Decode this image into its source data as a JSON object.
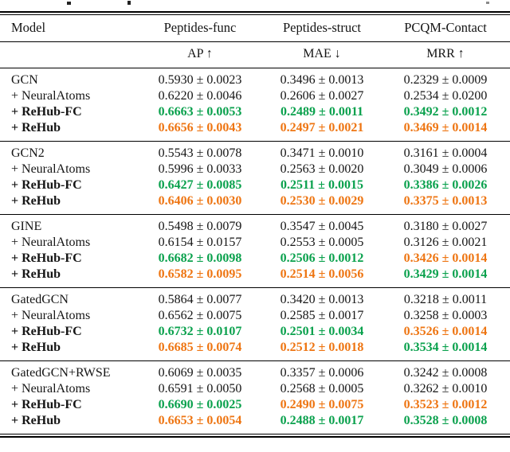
{
  "colors": {
    "green": "#0aa14d",
    "orange": "#ee7512",
    "ink": "#151515"
  },
  "table": {
    "columns": [
      "Model",
      "Peptides-func",
      "Peptides-struct",
      "PCQM-Contact"
    ],
    "metrics": [
      "AP ↑",
      "MAE ↓",
      "MRR ↑"
    ],
    "groups": [
      {
        "rows": [
          {
            "model": "GCN",
            "em": "n",
            "cells": [
              {
                "t": "0.5930 ± 0.0023",
                "tone": "plain"
              },
              {
                "t": "0.3496 ± 0.0013",
                "tone": "plain"
              },
              {
                "t": "0.2329 ± 0.0009",
                "tone": "plain"
              }
            ]
          },
          {
            "model": "+ NeuralAtoms",
            "em": "n",
            "cells": [
              {
                "t": "0.6220 ± 0.0046",
                "tone": "plain"
              },
              {
                "t": "0.2606 ± 0.0027",
                "tone": "plain"
              },
              {
                "t": "0.2534 ± 0.0200",
                "tone": "plain"
              }
            ]
          },
          {
            "model": "+ ReHub-FC",
            "em": "b",
            "cells": [
              {
                "t": "0.6663 ± 0.0053",
                "tone": "green"
              },
              {
                "t": "0.2489 ± 0.0011",
                "tone": "green"
              },
              {
                "t": "0.3492 ± 0.0012",
                "tone": "green"
              }
            ]
          },
          {
            "model": "+ ReHub",
            "em": "b",
            "cells": [
              {
                "t": "0.6656 ± 0.0043",
                "tone": "orange"
              },
              {
                "t": "0.2497 ± 0.0021",
                "tone": "orange"
              },
              {
                "t": "0.3469 ± 0.0014",
                "tone": "orange"
              }
            ]
          }
        ]
      },
      {
        "rows": [
          {
            "model": "GCN2",
            "em": "n",
            "cells": [
              {
                "t": "0.5543 ± 0.0078",
                "tone": "plain"
              },
              {
                "t": "0.3471 ± 0.0010",
                "tone": "plain"
              },
              {
                "t": "0.3161 ± 0.0004",
                "tone": "plain"
              }
            ]
          },
          {
            "model": "+ NeuralAtoms",
            "em": "n",
            "cells": [
              {
                "t": "0.5996 ± 0.0033",
                "tone": "plain"
              },
              {
                "t": "0.2563 ± 0.0020",
                "tone": "plain"
              },
              {
                "t": "0.3049 ± 0.0006",
                "tone": "plain"
              }
            ]
          },
          {
            "model": "+ ReHub-FC",
            "em": "b",
            "cells": [
              {
                "t": "0.6427 ± 0.0085",
                "tone": "green"
              },
              {
                "t": "0.2511 ± 0.0015",
                "tone": "green"
              },
              {
                "t": "0.3386 ± 0.0026",
                "tone": "green"
              }
            ]
          },
          {
            "model": "+ ReHub",
            "em": "b",
            "cells": [
              {
                "t": "0.6406 ± 0.0030",
                "tone": "orange"
              },
              {
                "t": "0.2530 ± 0.0029",
                "tone": "orange"
              },
              {
                "t": "0.3375 ± 0.0013",
                "tone": "orange"
              }
            ]
          }
        ]
      },
      {
        "rows": [
          {
            "model": "GINE",
            "em": "n",
            "cells": [
              {
                "t": "0.5498 ± 0.0079",
                "tone": "plain"
              },
              {
                "t": "0.3547 ± 0.0045",
                "tone": "plain"
              },
              {
                "t": "0.3180 ± 0.0027",
                "tone": "plain"
              }
            ]
          },
          {
            "model": "+ NeuralAtoms",
            "em": "n",
            "cells": [
              {
                "t": "0.6154 ± 0.0157",
                "tone": "plain"
              },
              {
                "t": "0.2553 ± 0.0005",
                "tone": "plain"
              },
              {
                "t": "0.3126 ± 0.0021",
                "tone": "plain"
              }
            ]
          },
          {
            "model": "+ ReHub-FC",
            "em": "b",
            "cells": [
              {
                "t": "0.6682 ± 0.0098",
                "tone": "green"
              },
              {
                "t": "0.2506 ± 0.0012",
                "tone": "green"
              },
              {
                "t": "0.3426 ± 0.0014",
                "tone": "orange"
              }
            ]
          },
          {
            "model": "+ ReHub",
            "em": "b",
            "cells": [
              {
                "t": "0.6582 ± 0.0095",
                "tone": "orange"
              },
              {
                "t": "0.2514 ± 0.0056",
                "tone": "orange"
              },
              {
                "t": "0.3429 ± 0.0014",
                "tone": "green"
              }
            ]
          }
        ]
      },
      {
        "rows": [
          {
            "model": "GatedGCN",
            "em": "n",
            "cells": [
              {
                "t": "0.5864 ± 0.0077",
                "tone": "plain"
              },
              {
                "t": "0.3420 ± 0.0013",
                "tone": "plain"
              },
              {
                "t": "0.3218 ± 0.0011",
                "tone": "plain"
              }
            ]
          },
          {
            "model": "+ NeuralAtoms",
            "em": "n",
            "cells": [
              {
                "t": "0.6562 ± 0.0075",
                "tone": "plain"
              },
              {
                "t": "0.2585 ± 0.0017",
                "tone": "plain"
              },
              {
                "t": "0.3258 ± 0.0003",
                "tone": "plain"
              }
            ]
          },
          {
            "model": "+ ReHub-FC",
            "em": "b",
            "cells": [
              {
                "t": "0.6732 ± 0.0107",
                "tone": "green"
              },
              {
                "t": "0.2501 ± 0.0034",
                "tone": "green"
              },
              {
                "t": "0.3526 ± 0.0014",
                "tone": "orange"
              }
            ]
          },
          {
            "model": "+ ReHub",
            "em": "b",
            "cells": [
              {
                "t": "0.6685 ± 0.0074",
                "tone": "orange"
              },
              {
                "t": "0.2512 ± 0.0018",
                "tone": "orange"
              },
              {
                "t": "0.3534 ± 0.0014",
                "tone": "green"
              }
            ]
          }
        ]
      },
      {
        "rows": [
          {
            "model": "GatedGCN+RWSE",
            "em": "n",
            "cells": [
              {
                "t": "0.6069 ± 0.0035",
                "tone": "plain"
              },
              {
                "t": "0.3357 ± 0.0006",
                "tone": "plain"
              },
              {
                "t": "0.3242 ± 0.0008",
                "tone": "plain"
              }
            ]
          },
          {
            "model": "+ NeuralAtoms",
            "em": "n",
            "cells": [
              {
                "t": "0.6591 ± 0.0050",
                "tone": "plain"
              },
              {
                "t": "0.2568 ± 0.0005",
                "tone": "plain"
              },
              {
                "t": "0.3262 ± 0.0010",
                "tone": "plain"
              }
            ]
          },
          {
            "model": "+ ReHub-FC",
            "em": "b",
            "cells": [
              {
                "t": "0.6690 ± 0.0025",
                "tone": "green"
              },
              {
                "t": "0.2490 ± 0.0075",
                "tone": "orange"
              },
              {
                "t": "0.3523 ± 0.0012",
                "tone": "orange"
              }
            ]
          },
          {
            "model": "+ ReHub",
            "em": "b",
            "cells": [
              {
                "t": "0.6653 ± 0.0054",
                "tone": "orange"
              },
              {
                "t": "0.2488 ± 0.0017",
                "tone": "green"
              },
              {
                "t": "0.3528 ± 0.0008",
                "tone": "green"
              }
            ]
          }
        ]
      }
    ]
  }
}
